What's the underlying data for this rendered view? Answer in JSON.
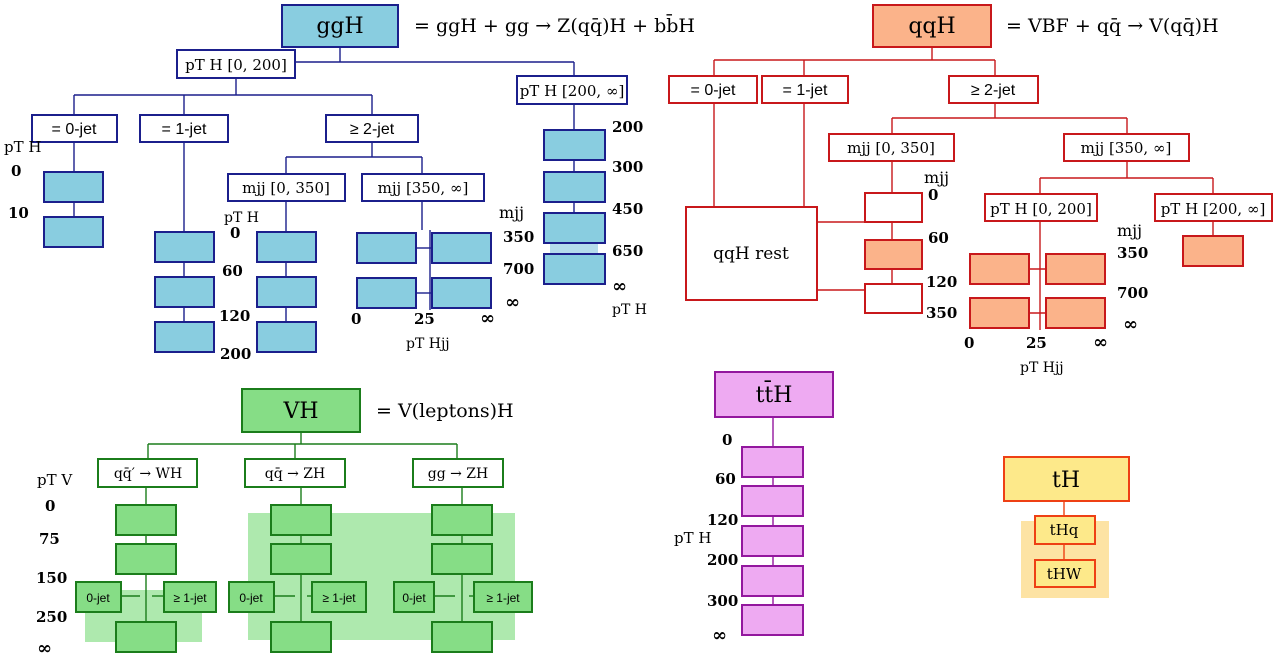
{
  "ggH": {
    "title": "ggH",
    "definition": "= ggH + gg → Z(qq̄)H + bb̄H",
    "pt_low": "pT H [0, 200]",
    "pt_high": "pT H [200, ∞]",
    "jet0": "= 0-jet",
    "jet1": "= 1-jet",
    "jet2": "≥ 2-jet",
    "mjj_low": "mjj [0, 350]",
    "mjj_high": "mjj [350, ∞]",
    "pt_axis_label": "pT H",
    "pt_label_small": "pT H",
    "jet0_ticks": [
      "0",
      "10"
    ],
    "jet1_ticks": [
      "60",
      "120",
      "200"
    ],
    "mjjlow_ticks": [
      "0"
    ],
    "vbf_ticks": [
      "0",
      "25",
      "∞"
    ],
    "vbf_axis_label": "pT Hjj",
    "high_ticks": [
      "200",
      "300",
      "450",
      "650",
      "∞"
    ],
    "high_axis_label": "pT H",
    "mjj_axis_label": "mjj",
    "mjj_ticks": [
      "350",
      "700",
      "∞"
    ],
    "color_fill": "#89cde0",
    "color_stroke": "#1b1f8c"
  },
  "qqH": {
    "title": "qqH",
    "definition": "= VBF + qq̄ → V(qq̄)H",
    "jet0": "= 0-jet",
    "jet1": "= 1-jet",
    "jet2": "≥ 2-jet",
    "mjj_low": "mjj [0, 350]",
    "mjj_high": "mjj [350, ∞]",
    "rest": "qqH rest",
    "mjj_axis_label": "mjj",
    "mjj_ticks": [
      "0",
      "60",
      "120",
      "350"
    ],
    "pt_low": "pT H [0, 200]",
    "pt_high": "pT H [200, ∞]",
    "mjj_axis_label2": "mjj",
    "mjj_ticks2": [
      "350",
      "700",
      "∞"
    ],
    "vbf_ticks": [
      "0",
      "25",
      "∞"
    ],
    "vbf_axis_label": "pT Hjj",
    "color_fill": "#fbb38a",
    "color_stroke": "#c8181b"
  },
  "VH": {
    "title": "VH",
    "definition": "= V(leptons)H",
    "wh": "qq̄′ → WH",
    "zh": "qq̄ → ZH",
    "ggzh": "gg → ZH",
    "jet0": "0-jet",
    "jet1": "≥ 1-jet",
    "axis_label": "pT V",
    "ticks": [
      "0",
      "75",
      "150",
      "250",
      "∞"
    ],
    "color_fill": "#86dd86",
    "color_stroke": "#1b7d1b",
    "color_highlight": "#aee9ae"
  },
  "ttH": {
    "title": "tt̄H",
    "axis_label": "pT H",
    "ticks": [
      "0",
      "60",
      "120",
      "200",
      "300",
      "∞"
    ],
    "color_fill": "#eeaaf2",
    "color_stroke": "#93179e"
  },
  "tH": {
    "title": "tH",
    "thq": "tHq",
    "thw": "tHW",
    "color_fill": "#fde98a",
    "color_stroke": "#ee4014",
    "color_highlight": "#fde3a4"
  }
}
